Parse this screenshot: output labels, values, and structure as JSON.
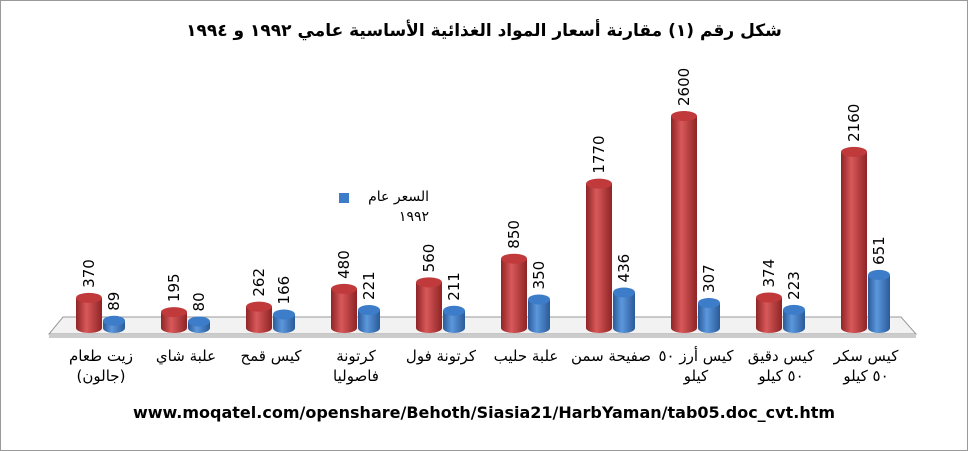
{
  "chart_data": {
    "type": "bar",
    "title": "شكل رقم (١) مقارنة أسعار المواد الغذائية الأساسية عامي ١٩٩٢ و ١٩٩٤",
    "categories": [
      "زيت طعام (جالون)",
      "علبة شاي",
      "كيس قمح",
      "كرتونة فاصوليا",
      "كرتونة فول",
      "علبة حليب",
      "صفيحة سمن",
      "كيس أرز ٥٠ كيلو",
      "كيس دقيق ٥٠ كيلو",
      "كيس سكر ٥٠ كيلو"
    ],
    "series": [
      {
        "color": "#c0393b",
        "values": [
          370,
          195,
          262,
          480,
          560,
          850,
          1770,
          2600,
          374,
          2160
        ]
      },
      {
        "name": "السعر عام ١٩٩٢",
        "color": "#3d7cc9",
        "values": [
          89,
          80,
          166,
          221,
          211,
          350,
          436,
          307,
          223,
          651
        ]
      }
    ],
    "source": "www.moqatel.com/openshare/Behoth/Siasia21/HarbYaman/tab05.doc_cvt.htm"
  }
}
